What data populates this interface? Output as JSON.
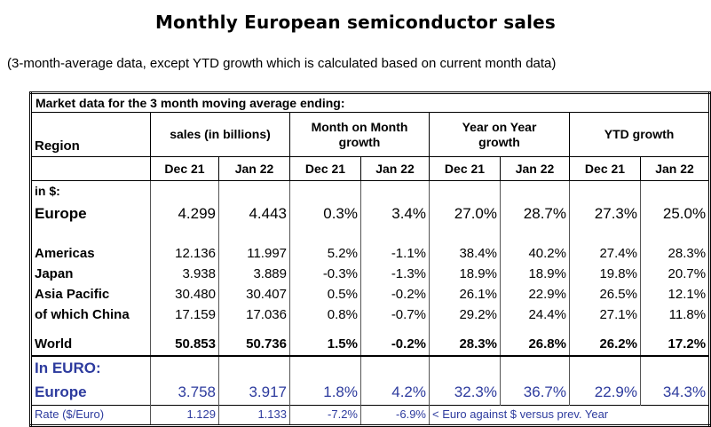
{
  "title": "Monthly European semiconductor sales",
  "subtitle": "(3-month-average data, except YTD growth which is calculated based on current month data)",
  "table": {
    "caption": "Market data for the 3 month moving average ending:",
    "region_header": "Region",
    "groups": [
      "sales (in billions)",
      "Month on Month growth",
      "Year on Year growth",
      "YTD growth"
    ],
    "subheaders": [
      "Dec 21",
      "Jan 22",
      "Dec 21",
      "Jan 22",
      "Dec 21",
      "Jan 22",
      "Dec 21",
      "Jan 22"
    ]
  },
  "usd": {
    "label": "in $:",
    "rows": [
      {
        "region": "Europe",
        "values": [
          "4.299",
          "4.443",
          "0.3%",
          "3.4%",
          "27.0%",
          "28.7%",
          "27.3%",
          "25.0%"
        ]
      },
      {
        "region": "Americas",
        "values": [
          "12.136",
          "11.997",
          "5.2%",
          "-1.1%",
          "38.4%",
          "40.2%",
          "27.4%",
          "28.3%"
        ]
      },
      {
        "region": "Japan",
        "values": [
          "3.938",
          "3.889",
          "-0.3%",
          "-1.3%",
          "18.9%",
          "18.9%",
          "19.8%",
          "20.7%"
        ]
      },
      {
        "region": "Asia Pacific",
        "values": [
          "30.480",
          "30.407",
          "0.5%",
          "-0.2%",
          "26.1%",
          "22.9%",
          "26.5%",
          "12.1%"
        ]
      },
      {
        "region": "of which China",
        "values": [
          "17.159",
          "17.036",
          "0.8%",
          "-0.7%",
          "29.2%",
          "24.4%",
          "27.1%",
          "11.8%"
        ]
      }
    ],
    "world": {
      "region": "World",
      "values": [
        "50.853",
        "50.736",
        "1.5%",
        "-0.2%",
        "28.3%",
        "26.8%",
        "26.2%",
        "17.2%"
      ]
    }
  },
  "eur": {
    "label": "In EURO:",
    "europe": {
      "region": "Europe",
      "values": [
        "3.758",
        "3.917",
        "1.8%",
        "4.2%",
        "32.3%",
        "36.7%",
        "22.9%",
        "34.3%"
      ]
    },
    "rate": {
      "label": "Rate ($/Euro)",
      "values": [
        "1.129",
        "1.133",
        "-7.2%",
        "-6.9%"
      ],
      "note": "< Euro against $ versus prev. Year"
    }
  },
  "colors": {
    "euro_blue": "#2d3b9e",
    "text": "#000000"
  }
}
